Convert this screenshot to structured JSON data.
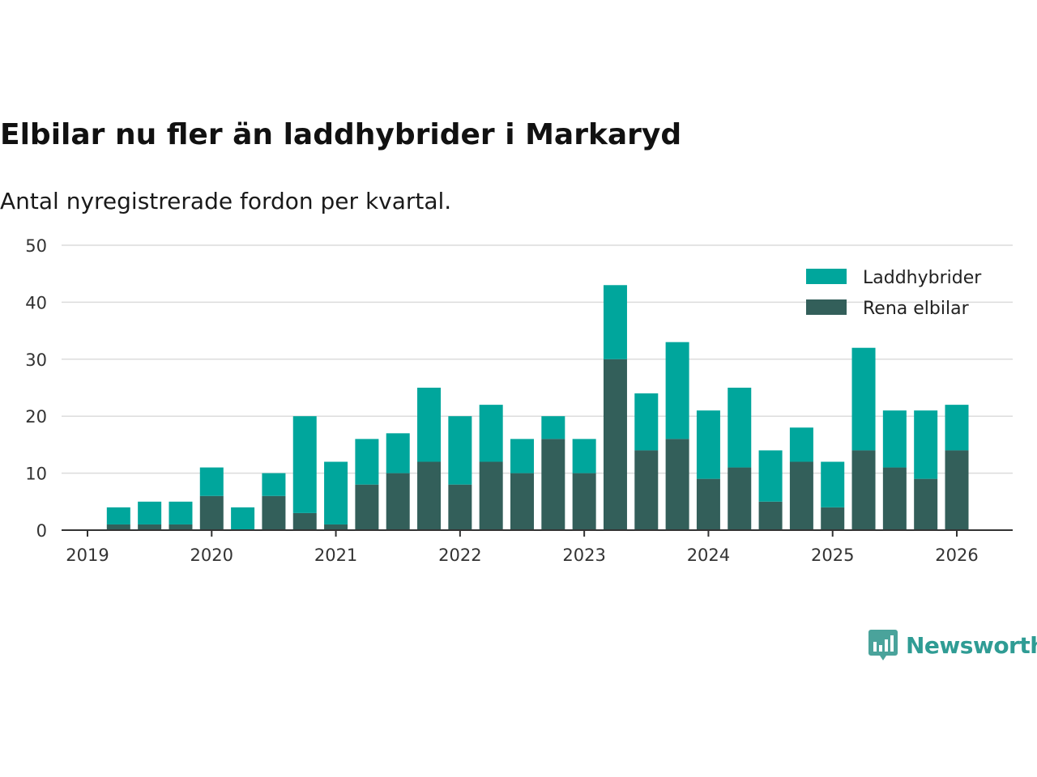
{
  "header": {
    "title": "Elbilar nu fler än laddhybrider i Markaryd",
    "subtitle": "Antal nyregistrerade fordon per kvartal."
  },
  "brand": {
    "name": "Newsworthy",
    "icon": "bar-chart-bubble-icon",
    "color": "#2f9c94"
  },
  "chart_data": {
    "type": "bar",
    "stacked": true,
    "title": "Elbilar nu fler än laddhybrider i Markaryd",
    "subtitle": "Antal nyregistrerade fordon per kvartal.",
    "xlabel": "",
    "ylabel": "",
    "ylim": [
      0,
      50
    ],
    "yticks": [
      0,
      10,
      20,
      30,
      40,
      50
    ],
    "xlim": [
      2019,
      2026.45
    ],
    "xticks": [
      2019,
      2020,
      2021,
      2022,
      2023,
      2024,
      2025,
      2026
    ],
    "xtick_labels": [
      "2019",
      "2020",
      "2021",
      "2022",
      "2023",
      "2024",
      "2025",
      "2026"
    ],
    "grid": true,
    "legend_position": "top-right",
    "x": [
      2019.25,
      2019.5,
      2019.75,
      2020.0,
      2020.25,
      2020.5,
      2020.75,
      2021.0,
      2021.25,
      2021.5,
      2021.75,
      2022.0,
      2022.25,
      2022.5,
      2022.75,
      2023.0,
      2023.25,
      2023.5,
      2023.75,
      2024.0,
      2024.25,
      2024.5,
      2024.75,
      2025.0,
      2025.25,
      2025.5,
      2025.75,
      2026.0
    ],
    "series": [
      {
        "name": "Rena elbilar",
        "color": "#335f5a",
        "values": [
          1,
          1,
          1,
          6,
          0,
          6,
          3,
          1,
          8,
          10,
          12,
          8,
          12,
          10,
          16,
          10,
          30,
          14,
          16,
          9,
          11,
          5,
          12,
          4,
          14,
          11,
          9,
          14
        ]
      },
      {
        "name": "Laddhybrider",
        "color": "#00a69c",
        "values": [
          3,
          4,
          4,
          5,
          4,
          4,
          17,
          11,
          8,
          7,
          13,
          12,
          10,
          6,
          4,
          6,
          13,
          10,
          17,
          12,
          14,
          9,
          6,
          8,
          18,
          10,
          12,
          8
        ]
      }
    ],
    "legend": [
      {
        "name": "Laddhybrider",
        "color": "#00a69c"
      },
      {
        "name": "Rena elbilar",
        "color": "#335f5a"
      }
    ]
  }
}
